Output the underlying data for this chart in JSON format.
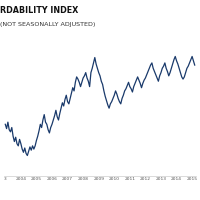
{
  "title_line1": "RDABILITY INDEX",
  "title_line2": "(NOT SEASONALLY ADJUSTED)",
  "line_color": "#1a3a6b",
  "background_color": "#ffffff",
  "x_labels": [
    "3",
    "2004",
    "2005",
    "2006",
    "2007",
    "2008",
    "2009",
    "2010",
    "2011",
    "2012",
    "2013",
    "2014",
    "2015"
  ],
  "title_fontsize": 5.8,
  "line_width": 0.9,
  "ylim": [
    100,
    230
  ],
  "y_values": [
    148,
    144,
    150,
    143,
    141,
    145,
    137,
    132,
    136,
    130,
    128,
    134,
    130,
    125,
    122,
    126,
    121,
    119,
    123,
    127,
    124,
    128,
    125,
    128,
    133,
    137,
    142,
    148,
    145,
    152,
    157,
    150,
    148,
    143,
    140,
    145,
    148,
    152,
    156,
    161,
    155,
    152,
    158,
    163,
    168,
    165,
    171,
    175,
    169,
    167,
    172,
    177,
    182,
    179,
    187,
    192,
    190,
    187,
    183,
    187,
    191,
    193,
    196,
    191,
    188,
    183,
    196,
    200,
    205,
    210,
    204,
    200,
    196,
    193,
    188,
    185,
    179,
    174,
    170,
    166,
    163,
    167,
    169,
    172,
    175,
    179,
    176,
    172,
    169,
    167,
    172,
    175,
    179,
    181,
    184,
    187,
    183,
    181,
    178,
    183,
    186,
    189,
    192,
    189,
    186,
    182,
    186,
    189,
    191,
    194,
    197,
    200,
    203,
    205,
    200,
    197,
    194,
    191,
    188,
    193,
    196,
    200,
    202,
    205,
    200,
    197,
    193,
    196,
    200,
    204,
    208,
    211,
    207,
    204,
    200,
    196,
    192,
    190,
    192,
    196,
    200,
    202,
    205,
    208,
    211,
    207,
    203
  ]
}
